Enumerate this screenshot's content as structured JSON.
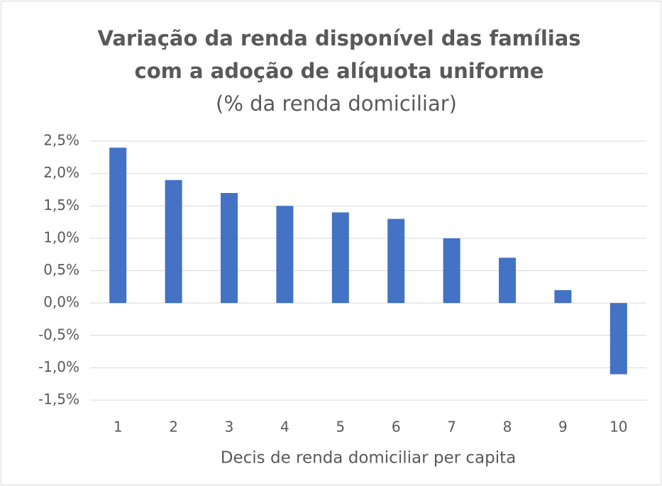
{
  "chart_data": {
    "type": "bar",
    "title": [
      "Variação da renda disponível das famílias",
      "com a adoção de alíquota uniforme"
    ],
    "subtitle": "(% da renda domiciliar)",
    "x_label": "Decis de renda domiciliar per capita",
    "categories": [
      "1",
      "2",
      "3",
      "4",
      "5",
      "6",
      "7",
      "8",
      "9",
      "10"
    ],
    "values": [
      2.4,
      1.9,
      1.7,
      1.5,
      1.4,
      1.3,
      1.0,
      0.7,
      0.2,
      -1.1
    ],
    "color": "#4472c4",
    "ylim": [
      -1.5,
      2.5
    ],
    "yticks": [
      {
        "value": -1.5,
        "label": "-1,5%"
      },
      {
        "value": -1.0,
        "label": "-1,0%"
      },
      {
        "value": -0.5,
        "label": "-0,5%"
      },
      {
        "value": 0,
        "label": "0,0%"
      },
      {
        "value": 0.5,
        "label": "0,5%"
      },
      {
        "value": 1.0,
        "label": "1,0%"
      },
      {
        "value": 1.5,
        "label": "1,5%"
      },
      {
        "value": 2.0,
        "label": "2,0%"
      },
      {
        "value": 2.5,
        "label": "2,5%"
      }
    ],
    "grid": true
  }
}
